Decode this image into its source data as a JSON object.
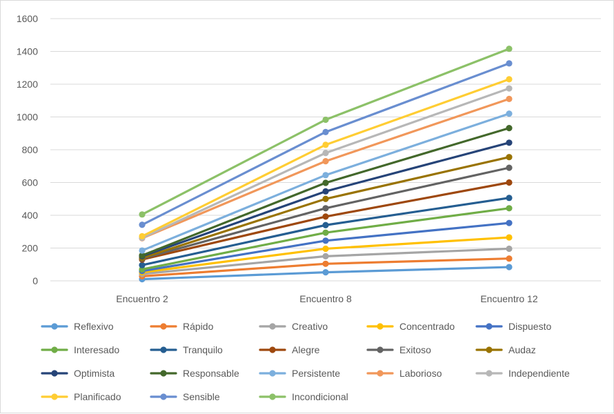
{
  "chart_data": {
    "type": "line",
    "categories": [
      "Encuentro 2",
      "Encuentro 8",
      "Encuentro 12"
    ],
    "ylim": [
      0,
      1600
    ],
    "yticks": [
      0,
      200,
      400,
      600,
      800,
      1000,
      1200,
      1400,
      1600
    ],
    "grid": true,
    "legend_position": "bottom",
    "series": [
      {
        "name": "Reflexivo",
        "color": "#5b9bd5",
        "values": [
          10,
          52,
          84
        ]
      },
      {
        "name": "Rápido",
        "color": "#ed7d31",
        "values": [
          28,
          104,
          136
        ]
      },
      {
        "name": "Creativo",
        "color": "#a5a5a5",
        "values": [
          42,
          150,
          196
        ]
      },
      {
        "name": "Concentrado",
        "color": "#ffc000",
        "values": [
          52,
          196,
          265
        ]
      },
      {
        "name": "Dispuesto",
        "color": "#4472c4",
        "values": [
          60,
          245,
          353
        ]
      },
      {
        "name": "Interesado",
        "color": "#70ad47",
        "values": [
          70,
          294,
          443
        ]
      },
      {
        "name": "Tranquilo",
        "color": "#255e91",
        "values": [
          96,
          340,
          506
        ]
      },
      {
        "name": "Alegre",
        "color": "#9e480e",
        "values": [
          130,
          392,
          600
        ]
      },
      {
        "name": "Exitoso",
        "color": "#636363",
        "values": [
          136,
          443,
          690
        ]
      },
      {
        "name": "Audaz",
        "color": "#997300",
        "values": [
          140,
          500,
          755
        ]
      },
      {
        "name": "Optimista",
        "color": "#264478",
        "values": [
          150,
          546,
          843
        ]
      },
      {
        "name": "Responsable",
        "color": "#43682b",
        "values": [
          155,
          598,
          932
        ]
      },
      {
        "name": "Persistente",
        "color": "#7cafdd",
        "values": [
          185,
          645,
          1020
        ]
      },
      {
        "name": "Laborioso",
        "color": "#f1975a",
        "values": [
          260,
          730,
          1110
        ]
      },
      {
        "name": "Independiente",
        "color": "#b7b7b7",
        "values": [
          262,
          780,
          1174
        ]
      },
      {
        "name": "Planificado",
        "color": "#ffcd33",
        "values": [
          272,
          830,
          1230
        ]
      },
      {
        "name": "Sensible",
        "color": "#698ed0",
        "values": [
          342,
          908,
          1327
        ]
      },
      {
        "name": "Incondicional",
        "color": "#8cc168",
        "values": [
          405,
          983,
          1416
        ]
      }
    ]
  },
  "colors": {
    "gridline": "#d9d9d9",
    "text": "#595959"
  }
}
